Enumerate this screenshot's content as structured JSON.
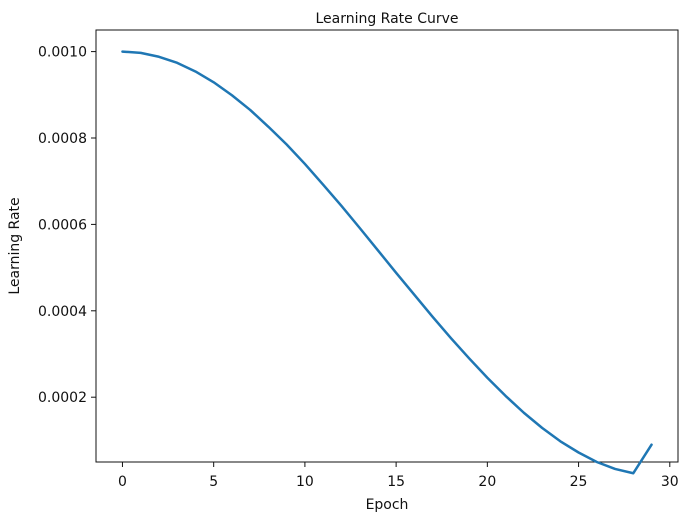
{
  "chart_data": {
    "type": "line",
    "title": "Learning Rate Curve",
    "xlabel": "Epoch",
    "ylabel": "Learning Rate",
    "xlim": [
      -1.45,
      30.45
    ],
    "ylim": [
      5e-05,
      0.00105
    ],
    "xticks": [
      0,
      5,
      10,
      15,
      20,
      25,
      30
    ],
    "xtick_labels": [
      "0",
      "5",
      "10",
      "15",
      "20",
      "25",
      "30"
    ],
    "yticks": [
      0.0002,
      0.0004,
      0.0006,
      0.0008,
      0.001
    ],
    "ytick_labels": [
      "0.0002",
      "0.0004",
      "0.0006",
      "0.0008",
      "0.0010"
    ],
    "grid": false,
    "series": [
      {
        "color": "#1f77b4",
        "x": [
          0,
          1,
          2,
          3,
          4,
          5,
          6,
          7,
          8,
          9,
          10,
          11,
          12,
          13,
          14,
          15,
          16,
          17,
          18,
          19,
          20,
          21,
          22,
          23,
          24,
          25,
          26,
          27,
          28,
          29
        ],
        "y": [
          0.001,
          0.000997,
          0.000988,
          0.000974,
          0.000954,
          0.000929,
          0.000899,
          0.000865,
          0.000826,
          0.000785,
          0.00074,
          0.000692,
          0.000643,
          0.000592,
          0.00054,
          0.000488,
          0.000437,
          0.000386,
          0.000337,
          0.00029,
          0.000245,
          0.000203,
          0.000164,
          0.000129,
          9.8e-05,
          7.2e-05,
          5e-05,
          3.4e-05,
          2.4e-05,
          9e-05
        ]
      }
    ]
  }
}
